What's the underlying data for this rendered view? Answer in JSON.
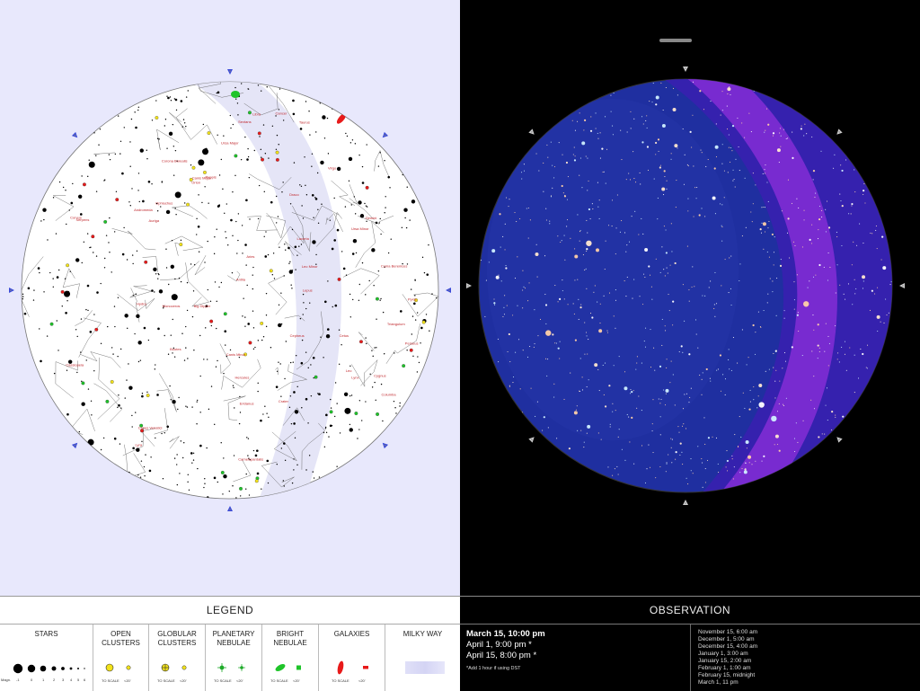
{
  "legend": {
    "title": "LEGEND",
    "columns": [
      {
        "key": "stars",
        "label": "STARS"
      },
      {
        "key": "open",
        "label": "OPEN\nCLUSTERS"
      },
      {
        "key": "globular",
        "label": "GLOBULAR\nCLUSTERS"
      },
      {
        "key": "planetary",
        "label": "PLANETARY\nNEBULAE"
      },
      {
        "key": "bright",
        "label": "BRIGHT\nNEBULAE"
      },
      {
        "key": "galaxies",
        "label": "GALAXIES"
      },
      {
        "key": "milkyway",
        "label": "MILKY WAY"
      }
    ],
    "magnitude_label": "Magn.",
    "magnitudes": [
      "-1",
      "0",
      "1",
      "2",
      "3",
      "4",
      "5",
      "6"
    ],
    "to_scale": "TO SCALE",
    "min_size": "<20'"
  },
  "observation": {
    "title": "OBSERVATION",
    "primary": "March 15, 10:00 pm",
    "alternates": [
      "April 1, 9:00 pm *",
      "April 15, 8:00 pm *"
    ],
    "dst_note": "*Add 1 hour if using DST",
    "times": [
      "November 15, 6:00 am",
      "December 1, 5:00 am",
      "December 15, 4:00 am",
      "January 1, 3:00 am",
      "January 15, 2:00 am",
      "February 1, 1:00 am",
      "February 15, midnight",
      "March 1, 11 pm"
    ]
  },
  "constellation_labels": [
    "Lyra",
    "Cygnus",
    "Cepheus",
    "Cassiopeia",
    "Draco",
    "Lacerta",
    "Andromeda",
    "Triangulum",
    "Perseus",
    "Camelopardalis",
    "Ursa Minor",
    "Hercules",
    "Corona Borealis",
    "Bootes",
    "Ursa Major",
    "Big Dipper",
    "Canes Venatici",
    "Coma Berenices",
    "Leo Minor",
    "Lynx",
    "Auriga",
    "Taurus",
    "Aries",
    "Cetus",
    "Gemini",
    "Orion",
    "Eridanus",
    "Cancer",
    "Leo",
    "Canis Minor",
    "Monoceros",
    "Canis Major",
    "Lepus",
    "Virgo",
    "Serpens",
    "Crater",
    "Corvus",
    "Hydra",
    "Sextans",
    "Antlia",
    "Pyxis",
    "Puppis",
    "Columba",
    "Libra",
    "Ophiuchus"
  ],
  "colors": {
    "chart_paper": "#ffffff",
    "chart_background": "#e8e8fc",
    "constellation_label": "#c0282d",
    "object_label": "#2a2a9e",
    "sky_night": "#1f2fa0",
    "milky_way": "#8a2ed8",
    "compass_marker": "#3a4ad8"
  }
}
